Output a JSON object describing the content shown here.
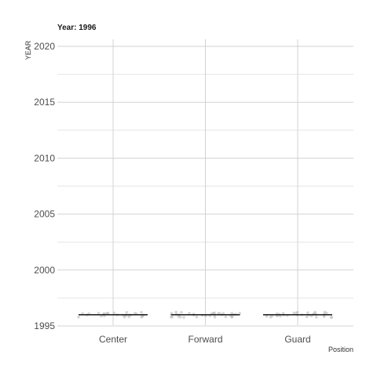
{
  "chart_data": {
    "type": "scatter",
    "title": "Year: 1996",
    "xlabel": "Position",
    "ylabel": "YEAR",
    "categories": [
      "Center",
      "Forward",
      "Guard"
    ],
    "series": [
      {
        "category": "Center",
        "values": [
          1996,
          1996,
          1996,
          1996,
          1996,
          1996,
          1996,
          1996,
          1996,
          1996,
          1996,
          1996,
          1996,
          1996,
          1996,
          1996,
          1996,
          1996,
          1996,
          1996,
          1996,
          1996,
          1996,
          1996,
          1996,
          1996,
          1996,
          1996,
          1996,
          1996
        ],
        "median": 1996
      },
      {
        "category": "Forward",
        "values": [
          1996,
          1996,
          1996,
          1996,
          1996,
          1996,
          1996,
          1996,
          1996,
          1996,
          1996,
          1996,
          1996,
          1996,
          1996,
          1996,
          1996,
          1996,
          1996,
          1996,
          1996,
          1996,
          1996,
          1996,
          1996,
          1996,
          1996,
          1996,
          1996,
          1996,
          1996,
          1996,
          1996,
          1996,
          1996
        ],
        "median": 1996
      },
      {
        "category": "Guard",
        "values": [
          1996,
          1996,
          1996,
          1996,
          1996,
          1996,
          1996,
          1996,
          1996,
          1996,
          1996,
          1996,
          1996,
          1996,
          1996,
          1996,
          1996,
          1996,
          1996,
          1996,
          1996,
          1996,
          1996,
          1996,
          1996,
          1996,
          1996,
          1996,
          1996,
          1996,
          1996,
          1996,
          1996
        ],
        "median": 1996
      }
    ],
    "yticks": [
      1995,
      2000,
      2005,
      2010,
      2015,
      2020
    ],
    "ylim": [
      1994.8,
      2020.6
    ],
    "grid": true,
    "legend": "none",
    "colors": {
      "points": "#bdbdbd",
      "median": "#1a1a1a",
      "grid_major": "#d3d3d3",
      "grid_minor": "#e6e6e6"
    }
  }
}
